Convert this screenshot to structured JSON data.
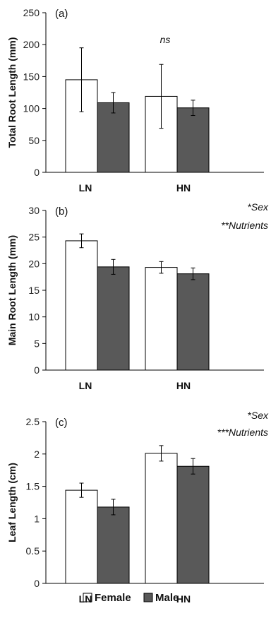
{
  "legend": {
    "items": [
      {
        "name": "Female",
        "color": "#ffffff"
      },
      {
        "name": "Male",
        "color": "#595959"
      }
    ]
  },
  "chart_data": [
    {
      "type": "bar",
      "panel_label": "(a)",
      "ylabel": "Total Root Length (mm)",
      "categories": [
        "LN",
        "HN"
      ],
      "ylim": [
        0,
        250
      ],
      "yticks": [
        0,
        50,
        100,
        150,
        200,
        250
      ],
      "annotations": [
        "ns"
      ],
      "annotation_position": "top-center",
      "grid": false,
      "series": [
        {
          "name": "Female",
          "color": "#ffffff",
          "values": [
            145,
            119
          ],
          "errors": [
            50,
            50
          ]
        },
        {
          "name": "Male",
          "color": "#595959",
          "values": [
            109,
            101
          ],
          "errors": [
            16,
            12
          ]
        }
      ]
    },
    {
      "type": "bar",
      "panel_label": "(b)",
      "ylabel": "Main Root Length (mm)",
      "categories": [
        "LN",
        "HN"
      ],
      "ylim": [
        0,
        30
      ],
      "yticks": [
        0,
        5,
        10,
        15,
        20,
        25,
        30
      ],
      "annotations": [
        "*Sex",
        "**Nutrients"
      ],
      "annotation_position": "top-right",
      "grid": false,
      "series": [
        {
          "name": "Female",
          "color": "#ffffff",
          "values": [
            24.3,
            19.3
          ],
          "errors": [
            1.3,
            1.1
          ]
        },
        {
          "name": "Male",
          "color": "#595959",
          "values": [
            19.4,
            18.1
          ],
          "errors": [
            1.4,
            1.1
          ]
        }
      ]
    },
    {
      "type": "bar",
      "panel_label": "(c)",
      "ylabel": "Leaf Length (cm)",
      "categories": [
        "LN",
        "HN"
      ],
      "ylim": [
        0,
        2.5
      ],
      "yticks": [
        "0",
        "0.5",
        "1",
        "1.5",
        "2",
        "2.5"
      ],
      "annotations": [
        "*Sex",
        "***Nutrients"
      ],
      "annotation_position": "top-right",
      "grid": false,
      "series": [
        {
          "name": "Female",
          "color": "#ffffff",
          "values": [
            1.44,
            2.01
          ],
          "errors": [
            0.11,
            0.12
          ]
        },
        {
          "name": "Male",
          "color": "#595959",
          "values": [
            1.18,
            1.81
          ],
          "errors": [
            0.12,
            0.12
          ]
        }
      ]
    }
  ]
}
